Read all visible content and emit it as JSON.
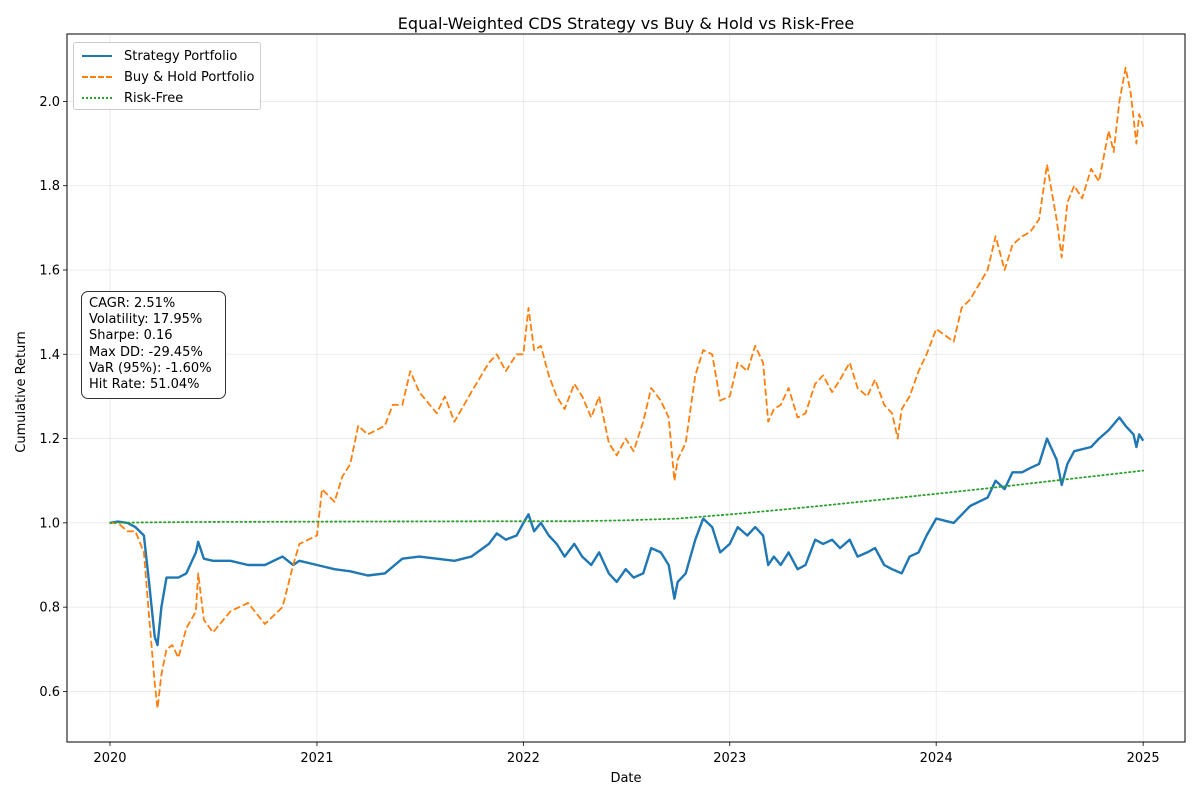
{
  "chart_data": {
    "type": "line",
    "title": "Equal-Weighted CDS Strategy vs Buy & Hold vs Risk-Free",
    "xlabel": "Date",
    "ylabel": "Cumulative Return",
    "x_ticks": [
      "2020",
      "2021",
      "2022",
      "2023",
      "2024",
      "2025"
    ],
    "y_ticks": [
      "0.6",
      "0.8",
      "1.0",
      "1.2",
      "1.4",
      "1.6",
      "1.8",
      "2.0"
    ],
    "xlim": [
      "2019-10-17",
      "2025-03-16"
    ],
    "ylim": [
      0.48,
      2.16
    ],
    "grid": true,
    "legend_position": "top-left",
    "series": [
      {
        "name": "Strategy Portfolio",
        "color": "#1f77b4",
        "style": "solid",
        "points": [
          [
            "2020-01-01",
            1.0
          ],
          [
            "2020-01-15",
            1.003
          ],
          [
            "2020-02-01",
            1.0
          ],
          [
            "2020-02-15",
            0.99
          ],
          [
            "2020-03-01",
            0.97
          ],
          [
            "2020-03-10",
            0.86
          ],
          [
            "2020-03-20",
            0.73
          ],
          [
            "2020-03-25",
            0.71
          ],
          [
            "2020-04-01",
            0.8
          ],
          [
            "2020-04-10",
            0.87
          ],
          [
            "2020-04-20",
            0.87
          ],
          [
            "2020-05-01",
            0.87
          ],
          [
            "2020-05-15",
            0.88
          ],
          [
            "2020-06-01",
            0.93
          ],
          [
            "2020-06-05",
            0.955
          ],
          [
            "2020-06-15",
            0.915
          ],
          [
            "2020-07-01",
            0.91
          ],
          [
            "2020-08-01",
            0.91
          ],
          [
            "2020-09-01",
            0.9
          ],
          [
            "2020-10-01",
            0.9
          ],
          [
            "2020-11-01",
            0.92
          ],
          [
            "2020-11-20",
            0.9
          ],
          [
            "2020-12-01",
            0.91
          ],
          [
            "2021-01-01",
            0.9
          ],
          [
            "2021-02-01",
            0.89
          ],
          [
            "2021-03-01",
            0.885
          ],
          [
            "2021-04-01",
            0.875
          ],
          [
            "2021-05-01",
            0.88
          ],
          [
            "2021-06-01",
            0.915
          ],
          [
            "2021-07-01",
            0.92
          ],
          [
            "2021-08-01",
            0.915
          ],
          [
            "2021-09-01",
            0.91
          ],
          [
            "2021-10-01",
            0.92
          ],
          [
            "2021-11-01",
            0.95
          ],
          [
            "2021-11-15",
            0.975
          ],
          [
            "2021-12-01",
            0.96
          ],
          [
            "2021-12-20",
            0.97
          ],
          [
            "2022-01-01",
            1.0
          ],
          [
            "2022-01-10",
            1.02
          ],
          [
            "2022-01-20",
            0.98
          ],
          [
            "2022-02-01",
            1.0
          ],
          [
            "2022-02-15",
            0.97
          ],
          [
            "2022-03-01",
            0.95
          ],
          [
            "2022-03-15",
            0.92
          ],
          [
            "2022-04-01",
            0.95
          ],
          [
            "2022-04-15",
            0.92
          ],
          [
            "2022-05-01",
            0.9
          ],
          [
            "2022-05-15",
            0.93
          ],
          [
            "2022-06-01",
            0.88
          ],
          [
            "2022-06-15",
            0.86
          ],
          [
            "2022-07-01",
            0.89
          ],
          [
            "2022-07-15",
            0.87
          ],
          [
            "2022-08-01",
            0.88
          ],
          [
            "2022-08-15",
            0.94
          ],
          [
            "2022-09-01",
            0.93
          ],
          [
            "2022-09-15",
            0.9
          ],
          [
            "2022-09-25",
            0.82
          ],
          [
            "2022-10-01",
            0.86
          ],
          [
            "2022-10-15",
            0.88
          ],
          [
            "2022-11-01",
            0.96
          ],
          [
            "2022-11-15",
            1.01
          ],
          [
            "2022-12-01",
            0.99
          ],
          [
            "2022-12-15",
            0.93
          ],
          [
            "2023-01-01",
            0.95
          ],
          [
            "2023-01-15",
            0.99
          ],
          [
            "2023-02-01",
            0.97
          ],
          [
            "2023-02-15",
            0.99
          ],
          [
            "2023-03-01",
            0.97
          ],
          [
            "2023-03-10",
            0.9
          ],
          [
            "2023-03-20",
            0.92
          ],
          [
            "2023-04-01",
            0.9
          ],
          [
            "2023-04-15",
            0.93
          ],
          [
            "2023-05-01",
            0.89
          ],
          [
            "2023-05-15",
            0.9
          ],
          [
            "2023-06-01",
            0.96
          ],
          [
            "2023-06-15",
            0.95
          ],
          [
            "2023-07-01",
            0.96
          ],
          [
            "2023-07-15",
            0.94
          ],
          [
            "2023-08-01",
            0.96
          ],
          [
            "2023-08-15",
            0.92
          ],
          [
            "2023-09-01",
            0.93
          ],
          [
            "2023-09-15",
            0.94
          ],
          [
            "2023-10-01",
            0.9
          ],
          [
            "2023-10-15",
            0.89
          ],
          [
            "2023-11-01",
            0.88
          ],
          [
            "2023-11-15",
            0.92
          ],
          [
            "2023-12-01",
            0.93
          ],
          [
            "2023-12-15",
            0.97
          ],
          [
            "2024-01-01",
            1.01
          ],
          [
            "2024-02-01",
            1.0
          ],
          [
            "2024-03-01",
            1.04
          ],
          [
            "2024-04-01",
            1.06
          ],
          [
            "2024-04-15",
            1.1
          ],
          [
            "2024-05-01",
            1.08
          ],
          [
            "2024-05-15",
            1.12
          ],
          [
            "2024-06-01",
            1.12
          ],
          [
            "2024-06-15",
            1.13
          ],
          [
            "2024-07-01",
            1.14
          ],
          [
            "2024-07-15",
            1.2
          ],
          [
            "2024-08-01",
            1.15
          ],
          [
            "2024-08-10",
            1.09
          ],
          [
            "2024-08-20",
            1.14
          ],
          [
            "2024-09-01",
            1.17
          ],
          [
            "2024-10-01",
            1.18
          ],
          [
            "2024-10-15",
            1.2
          ],
          [
            "2024-11-01",
            1.22
          ],
          [
            "2024-11-20",
            1.25
          ],
          [
            "2024-12-01",
            1.23
          ],
          [
            "2024-12-15",
            1.21
          ],
          [
            "2024-12-20",
            1.18
          ],
          [
            "2024-12-25",
            1.21
          ],
          [
            "2025-01-01",
            1.195
          ]
        ]
      },
      {
        "name": "Buy & Hold Portfolio",
        "color": "#ff7f0e",
        "style": "dashed",
        "points": [
          [
            "2020-01-01",
            1.0
          ],
          [
            "2020-01-15",
            1.0
          ],
          [
            "2020-02-01",
            0.98
          ],
          [
            "2020-02-15",
            0.98
          ],
          [
            "2020-03-01",
            0.93
          ],
          [
            "2020-03-10",
            0.78
          ],
          [
            "2020-03-20",
            0.62
          ],
          [
            "2020-03-25",
            0.56
          ],
          [
            "2020-04-01",
            0.64
          ],
          [
            "2020-04-10",
            0.7
          ],
          [
            "2020-04-20",
            0.71
          ],
          [
            "2020-05-01",
            0.68
          ],
          [
            "2020-05-15",
            0.75
          ],
          [
            "2020-06-01",
            0.79
          ],
          [
            "2020-06-05",
            0.88
          ],
          [
            "2020-06-15",
            0.77
          ],
          [
            "2020-07-01",
            0.74
          ],
          [
            "2020-08-01",
            0.79
          ],
          [
            "2020-09-01",
            0.81
          ],
          [
            "2020-10-01",
            0.76
          ],
          [
            "2020-11-01",
            0.8
          ],
          [
            "2020-11-20",
            0.9
          ],
          [
            "2020-12-01",
            0.95
          ],
          [
            "2021-01-01",
            0.97
          ],
          [
            "2021-01-10",
            1.08
          ],
          [
            "2021-02-01",
            1.05
          ],
          [
            "2021-02-15",
            1.11
          ],
          [
            "2021-03-01",
            1.14
          ],
          [
            "2021-03-15",
            1.23
          ],
          [
            "2021-04-01",
            1.21
          ],
          [
            "2021-05-01",
            1.23
          ],
          [
            "2021-05-15",
            1.28
          ],
          [
            "2021-06-01",
            1.28
          ],
          [
            "2021-06-15",
            1.36
          ],
          [
            "2021-07-01",
            1.31
          ],
          [
            "2021-08-01",
            1.26
          ],
          [
            "2021-08-15",
            1.3
          ],
          [
            "2021-09-01",
            1.24
          ],
          [
            "2021-10-01",
            1.31
          ],
          [
            "2021-11-01",
            1.38
          ],
          [
            "2021-11-15",
            1.4
          ],
          [
            "2021-12-01",
            1.36
          ],
          [
            "2021-12-20",
            1.4
          ],
          [
            "2022-01-01",
            1.4
          ],
          [
            "2022-01-10",
            1.51
          ],
          [
            "2022-01-20",
            1.41
          ],
          [
            "2022-02-01",
            1.42
          ],
          [
            "2022-02-15",
            1.35
          ],
          [
            "2022-03-01",
            1.3
          ],
          [
            "2022-03-15",
            1.27
          ],
          [
            "2022-04-01",
            1.33
          ],
          [
            "2022-04-15",
            1.3
          ],
          [
            "2022-05-01",
            1.25
          ],
          [
            "2022-05-15",
            1.3
          ],
          [
            "2022-06-01",
            1.19
          ],
          [
            "2022-06-15",
            1.16
          ],
          [
            "2022-07-01",
            1.2
          ],
          [
            "2022-07-15",
            1.17
          ],
          [
            "2022-08-01",
            1.24
          ],
          [
            "2022-08-15",
            1.32
          ],
          [
            "2022-09-01",
            1.29
          ],
          [
            "2022-09-15",
            1.25
          ],
          [
            "2022-09-25",
            1.1
          ],
          [
            "2022-10-01",
            1.15
          ],
          [
            "2022-10-15",
            1.19
          ],
          [
            "2022-11-01",
            1.35
          ],
          [
            "2022-11-15",
            1.41
          ],
          [
            "2022-12-01",
            1.4
          ],
          [
            "2022-12-15",
            1.29
          ],
          [
            "2023-01-01",
            1.3
          ],
          [
            "2023-01-15",
            1.38
          ],
          [
            "2023-02-01",
            1.36
          ],
          [
            "2023-02-15",
            1.42
          ],
          [
            "2023-03-01",
            1.38
          ],
          [
            "2023-03-10",
            1.24
          ],
          [
            "2023-03-20",
            1.27
          ],
          [
            "2023-04-01",
            1.28
          ],
          [
            "2023-04-15",
            1.32
          ],
          [
            "2023-05-01",
            1.25
          ],
          [
            "2023-05-15",
            1.26
          ],
          [
            "2023-06-01",
            1.33
          ],
          [
            "2023-06-15",
            1.35
          ],
          [
            "2023-07-01",
            1.31
          ],
          [
            "2023-07-15",
            1.34
          ],
          [
            "2023-08-01",
            1.38
          ],
          [
            "2023-08-15",
            1.32
          ],
          [
            "2023-09-01",
            1.3
          ],
          [
            "2023-09-15",
            1.34
          ],
          [
            "2023-10-01",
            1.28
          ],
          [
            "2023-10-15",
            1.26
          ],
          [
            "2023-10-25",
            1.2
          ],
          [
            "2023-11-01",
            1.27
          ],
          [
            "2023-11-15",
            1.3
          ],
          [
            "2023-12-01",
            1.36
          ],
          [
            "2023-12-15",
            1.4
          ],
          [
            "2024-01-01",
            1.46
          ],
          [
            "2024-02-01",
            1.43
          ],
          [
            "2024-02-15",
            1.51
          ],
          [
            "2024-03-01",
            1.53
          ],
          [
            "2024-04-01",
            1.6
          ],
          [
            "2024-04-15",
            1.68
          ],
          [
            "2024-05-01",
            1.6
          ],
          [
            "2024-05-15",
            1.66
          ],
          [
            "2024-06-01",
            1.68
          ],
          [
            "2024-06-15",
            1.69
          ],
          [
            "2024-07-01",
            1.72
          ],
          [
            "2024-07-15",
            1.85
          ],
          [
            "2024-08-01",
            1.72
          ],
          [
            "2024-08-10",
            1.63
          ],
          [
            "2024-08-20",
            1.76
          ],
          [
            "2024-09-01",
            1.8
          ],
          [
            "2024-09-15",
            1.77
          ],
          [
            "2024-10-01",
            1.84
          ],
          [
            "2024-10-15",
            1.81
          ],
          [
            "2024-11-01",
            1.93
          ],
          [
            "2024-11-10",
            1.88
          ],
          [
            "2024-11-20",
            2.0
          ],
          [
            "2024-12-01",
            2.08
          ],
          [
            "2024-12-10",
            2.02
          ],
          [
            "2024-12-20",
            1.9
          ],
          [
            "2024-12-25",
            1.97
          ],
          [
            "2025-01-01",
            1.94
          ]
        ]
      },
      {
        "name": "Risk-Free",
        "color": "#2ca02c",
        "style": "dotted",
        "points": [
          [
            "2020-01-01",
            1.0
          ],
          [
            "2020-03-01",
            1.001
          ],
          [
            "2020-06-01",
            1.002
          ],
          [
            "2021-01-01",
            1.003
          ],
          [
            "2022-01-01",
            1.004
          ],
          [
            "2022-04-01",
            1.004
          ],
          [
            "2022-07-01",
            1.006
          ],
          [
            "2022-10-01",
            1.01
          ],
          [
            "2023-01-01",
            1.02
          ],
          [
            "2023-04-01",
            1.031
          ],
          [
            "2023-07-01",
            1.043
          ],
          [
            "2023-10-01",
            1.056
          ],
          [
            "2024-01-01",
            1.069
          ],
          [
            "2024-04-01",
            1.082
          ],
          [
            "2024-07-01",
            1.096
          ],
          [
            "2024-10-01",
            1.11
          ],
          [
            "2025-01-01",
            1.124
          ]
        ]
      }
    ]
  },
  "stats_lines": [
    "CAGR: 2.51%",
    "Volatility: 17.95%",
    "Sharpe: 0.16",
    "Max DD: -29.45%",
    "VaR (95%): -1.60%",
    "Hit Rate: 51.04%"
  ]
}
